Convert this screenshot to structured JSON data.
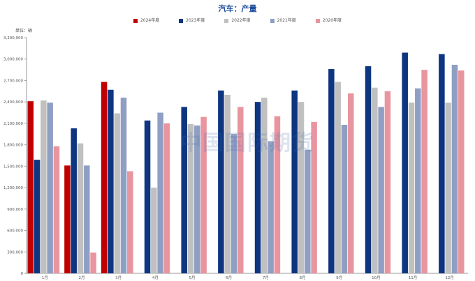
{
  "chart_data": {
    "type": "bar",
    "title": "汽车：产量",
    "unit_label": "单位：辆",
    "ylim": [
      0,
      3300000
    ],
    "yticks": [
      0,
      300000,
      600000,
      900000,
      1200000,
      1500000,
      1800000,
      2100000,
      2400000,
      2700000,
      3000000,
      3300000
    ],
    "ytick_labels": [
      "0",
      "300,000",
      "600,000",
      "900,000",
      "1,200,000",
      "1,500,000",
      "1,800,000",
      "2,100,000",
      "2,400,000",
      "2,700,000",
      "3,000,000",
      "3,300,000"
    ],
    "categories": [
      "1月",
      "2月",
      "3月",
      "4月",
      "5月",
      "6月",
      "7月",
      "8月",
      "9月",
      "10月",
      "11月",
      "12月"
    ],
    "series": [
      {
        "name": "2024年度",
        "color": "#c00000",
        "values": [
          2410000,
          1510000,
          2680000,
          null,
          null,
          null,
          null,
          null,
          null,
          null,
          null,
          null
        ]
      },
      {
        "name": "2023年度",
        "color": "#0d3580",
        "values": [
          1590000,
          2030000,
          2570000,
          2140000,
          2330000,
          2560000,
          2400000,
          2560000,
          2860000,
          2900000,
          3090000,
          3070000
        ]
      },
      {
        "name": "2022年度",
        "color": "#c0c0c0",
        "values": [
          2420000,
          1820000,
          2240000,
          1200000,
          2090000,
          2500000,
          2460000,
          2400000,
          2680000,
          2600000,
          2390000,
          2390000
        ]
      },
      {
        "name": "2021年度",
        "color": "#8f9fc4",
        "values": [
          2390000,
          1510000,
          2460000,
          2250000,
          2070000,
          1950000,
          1850000,
          1730000,
          2080000,
          2330000,
          2590000,
          2920000
        ]
      },
      {
        "name": "2020年度",
        "color": "#e8959f",
        "values": [
          1780000,
          290000,
          1430000,
          2100000,
          2190000,
          2330000,
          2200000,
          2120000,
          2520000,
          2550000,
          2850000,
          2840000
        ]
      }
    ]
  },
  "watermark": "中国国际期货"
}
